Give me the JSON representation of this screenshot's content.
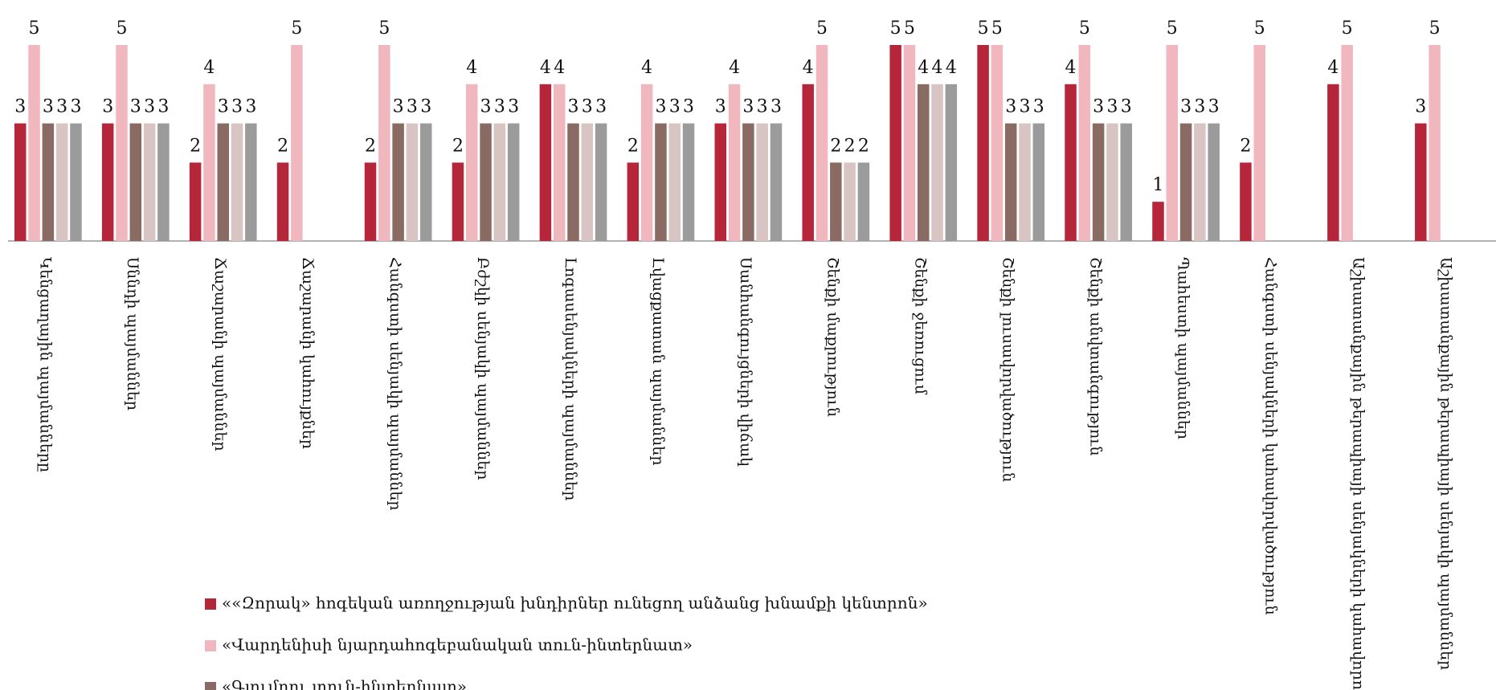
{
  "chart_data": {
    "type": "bar",
    "categories": [
      "Կենցաղային պայմանները",
      "Սննդի պայմաններ",
      "Ճաշարանի պայմաններ",
      "Ճաշարանի կահույքներ",
      "Հանգստի սենյակի պայմաններ",
      "Բժշկի սենյակի պայմաններ",
      "Լոգասենյակների պայմաններ",
      "Լվացքատան պայմաններ",
      "Սանհանգույցների վիճակ",
      "Շենքի մաքրություն",
      "Շենքի ջեռուցում",
      "Շենքի լուսավորվածություն",
      "Շենքի անվտանգություն",
      "Պահեստի պայմաններ",
      "Հանգստի սենյակների կահավորվածություն",
      "Աշխատանքային թերապիայի սենյակների կահավորում",
      "Աշխատանքային թերապիայի սենյակի պայմաններ"
    ],
    "series": [
      {
        "name": "««Զորակ» հոգեկան առողջության խնդիրներ ունեցող անձանց խնամքի կենտրոն»",
        "color": "#b5263b",
        "values": [
          3,
          3,
          2,
          2,
          2,
          2,
          4,
          2,
          3,
          4,
          5,
          5,
          4,
          1,
          2,
          4,
          3
        ]
      },
      {
        "name": "«Վարդենիսի նյարդահոգեբանական տուն-ինտերնատ»",
        "color": "#f0b8be",
        "values": [
          5,
          5,
          4,
          5,
          5,
          4,
          4,
          4,
          4,
          5,
          5,
          5,
          5,
          5,
          5,
          5,
          5
        ]
      },
      {
        "name": "«Գյումրու տուն-ինտերնատ»",
        "color": "#8a6b63",
        "values": [
          3,
          3,
          3,
          null,
          3,
          3,
          3,
          3,
          3,
          2,
          4,
          3,
          3,
          3,
          null,
          null,
          null
        ]
      },
      {
        "color": "#d8c4c2",
        "values": [
          3,
          3,
          3,
          null,
          3,
          3,
          3,
          3,
          3,
          2,
          4,
          3,
          3,
          3,
          null,
          null,
          null
        ]
      },
      {
        "color": "#9b9b9b",
        "values": [
          3,
          3,
          3,
          null,
          3,
          3,
          3,
          3,
          3,
          2,
          4,
          3,
          3,
          3,
          null,
          null,
          null
        ]
      }
    ],
    "ylim": [
      0,
      5
    ]
  }
}
